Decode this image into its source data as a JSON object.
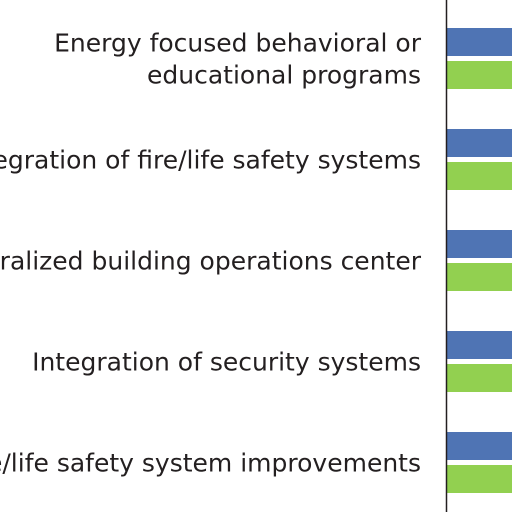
{
  "chart_data": {
    "type": "bar",
    "orientation": "horizontal",
    "categories": [
      [
        "Energy focused behavioral or",
        "educational programs"
      ],
      [
        "Integration of fire/life safety systems"
      ],
      [
        "Centralized building operations center"
      ],
      [
        "Integration of security systems"
      ],
      [
        "Fire/life safety system improvements"
      ]
    ],
    "series": [
      {
        "color": "#4f74b4",
        "values": [
          null,
          null,
          null,
          null,
          null
        ]
      },
      {
        "color": "#92d050",
        "values": [
          null,
          null,
          null,
          null,
          null
        ]
      }
    ],
    "title": "",
    "xlabel": "",
    "ylabel": "",
    "grid": false,
    "legend": "none"
  },
  "colors": {
    "axis": "#231f20",
    "text": "#231f20",
    "background": "#ffffff"
  }
}
